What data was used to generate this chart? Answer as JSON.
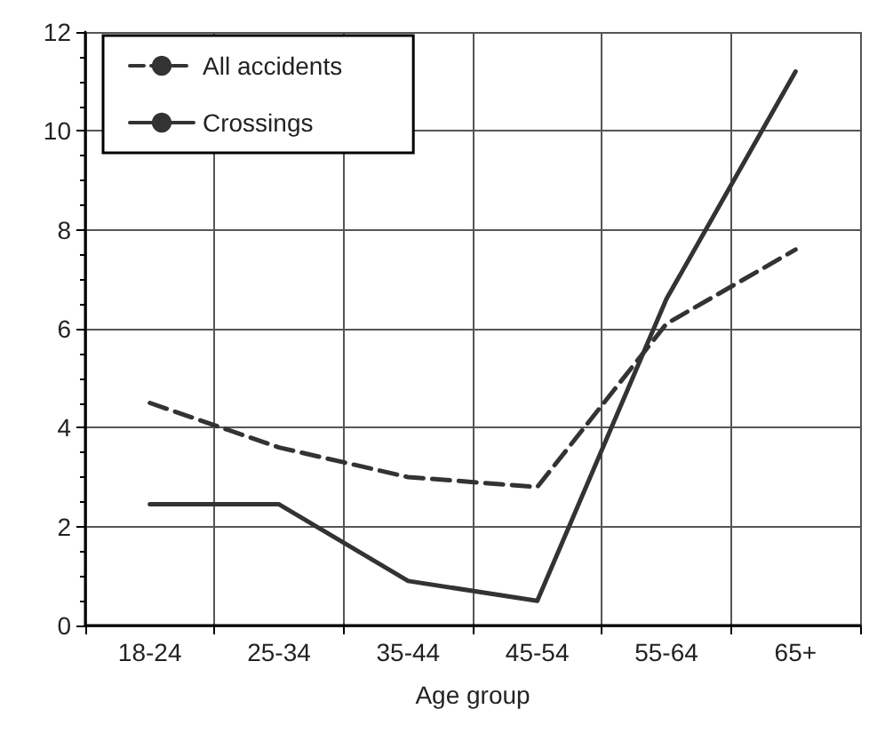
{
  "chart_data": {
    "type": "line",
    "xlabel": "Age group",
    "categories": [
      "18-24",
      "25-34",
      "35-44",
      "45-54",
      "55-64",
      "65+"
    ],
    "series": [
      {
        "name": "All accidents",
        "color": "#333333",
        "line_style": "dashed",
        "values": [
          4.5,
          3.6,
          3.0,
          2.8,
          6.1,
          7.6
        ]
      },
      {
        "name": "Crossings",
        "color": "#333333",
        "line_style": "solid",
        "values": [
          2.45,
          2.45,
          0.9,
          0.5,
          6.6,
          11.2
        ]
      }
    ],
    "ylim": [
      0,
      12
    ],
    "yticks": [
      0,
      2,
      4,
      6,
      8,
      10,
      12
    ],
    "grid": true,
    "legend": "top left",
    "marker": "none"
  }
}
